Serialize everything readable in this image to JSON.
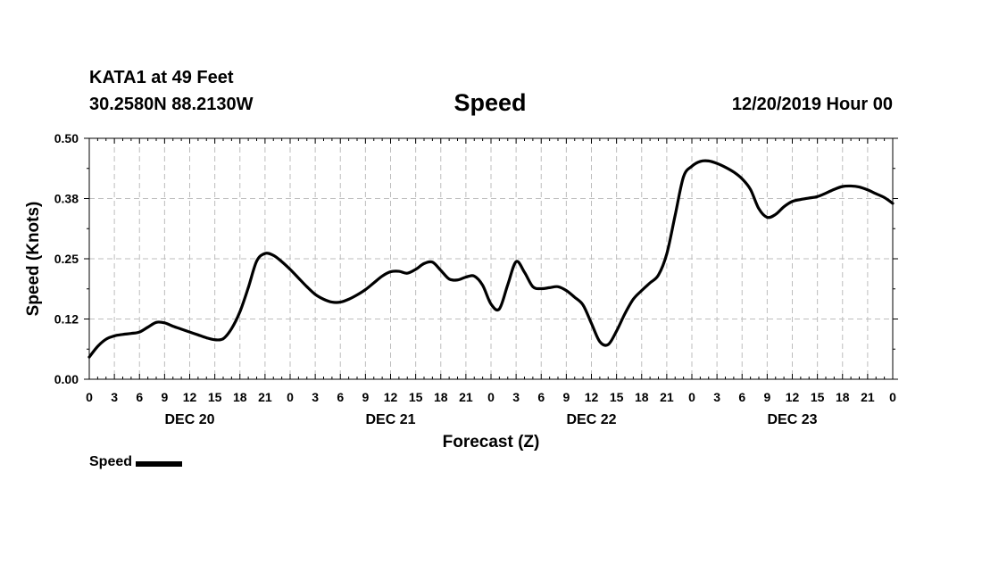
{
  "header": {
    "station": "KATA1 at 49 Feet",
    "coords": "30.2580N 88.2130W",
    "title": "Speed",
    "datetime": "12/20/2019 Hour 00"
  },
  "chart_data": {
    "type": "line",
    "title": "Speed",
    "xlabel": "Forecast (Z)",
    "ylabel": "Speed (Knots)",
    "ylim": [
      0,
      0.5
    ],
    "xlim": [
      0,
      96
    ],
    "yticks": [
      "0.00",
      "0.12",
      "0.25",
      "0.38",
      "0.50"
    ],
    "ytick_values": [
      0,
      0.125,
      0.25,
      0.375,
      0.5
    ],
    "xtick_labels": [
      "0",
      "3",
      "6",
      "9",
      "12",
      "15",
      "18",
      "21",
      "0",
      "3",
      "6",
      "9",
      "12",
      "15",
      "18",
      "21",
      "0",
      "3",
      "6",
      "9",
      "12",
      "15",
      "18",
      "21",
      "0",
      "3",
      "6",
      "9",
      "12",
      "15",
      "18",
      "21",
      "0"
    ],
    "day_labels": [
      {
        "label": "DEC 20",
        "hour": 12
      },
      {
        "label": "DEC 21",
        "hour": 36
      },
      {
        "label": "DEC 22",
        "hour": 60
      },
      {
        "label": "DEC 23",
        "hour": 84
      }
    ],
    "grid": true,
    "legend_position": "bottom-left",
    "series": [
      {
        "name": "Speed",
        "color": "#000000",
        "x": [
          0,
          1,
          2,
          3,
          4,
          5,
          6,
          7,
          8,
          9,
          10,
          11,
          12,
          13,
          14,
          15,
          16,
          17,
          18,
          19,
          20,
          21,
          22,
          23,
          24,
          25,
          26,
          27,
          28,
          29,
          30,
          31,
          32,
          33,
          34,
          35,
          36,
          37,
          38,
          39,
          40,
          41,
          42,
          43,
          44,
          45,
          46,
          47,
          48,
          49,
          50,
          51,
          52,
          53,
          54,
          55,
          56,
          57,
          58,
          59,
          60,
          61,
          62,
          63,
          64,
          65,
          66,
          67,
          68,
          69,
          70,
          71,
          72,
          73,
          74,
          75,
          76,
          77,
          78,
          79,
          80,
          81,
          82,
          83,
          84,
          85,
          86,
          87,
          88,
          89,
          90,
          91,
          92,
          93,
          94,
          95,
          96
        ],
        "y": [
          0.046,
          0.068,
          0.083,
          0.09,
          0.093,
          0.095,
          0.098,
          0.108,
          0.118,
          0.117,
          0.11,
          0.104,
          0.098,
          0.092,
          0.086,
          0.082,
          0.084,
          0.105,
          0.14,
          0.19,
          0.245,
          0.261,
          0.257,
          0.244,
          0.228,
          0.21,
          0.192,
          0.176,
          0.166,
          0.16,
          0.16,
          0.166,
          0.175,
          0.186,
          0.2,
          0.214,
          0.223,
          0.224,
          0.22,
          0.228,
          0.24,
          0.243,
          0.226,
          0.208,
          0.206,
          0.212,
          0.214,
          0.195,
          0.156,
          0.146,
          0.196,
          0.244,
          0.222,
          0.192,
          0.188,
          0.19,
          0.192,
          0.184,
          0.17,
          0.154,
          0.116,
          0.078,
          0.072,
          0.1,
          0.136,
          0.166,
          0.184,
          0.2,
          0.216,
          0.26,
          0.34,
          0.42,
          0.442,
          0.452,
          0.453,
          0.448,
          0.44,
          0.43,
          0.416,
          0.394,
          0.354,
          0.336,
          0.342,
          0.358,
          0.369,
          0.373,
          0.376,
          0.379,
          0.386,
          0.394,
          0.4,
          0.401,
          0.399,
          0.393,
          0.385,
          0.377,
          0.365
        ]
      }
    ]
  },
  "legend": {
    "label": "Speed"
  }
}
